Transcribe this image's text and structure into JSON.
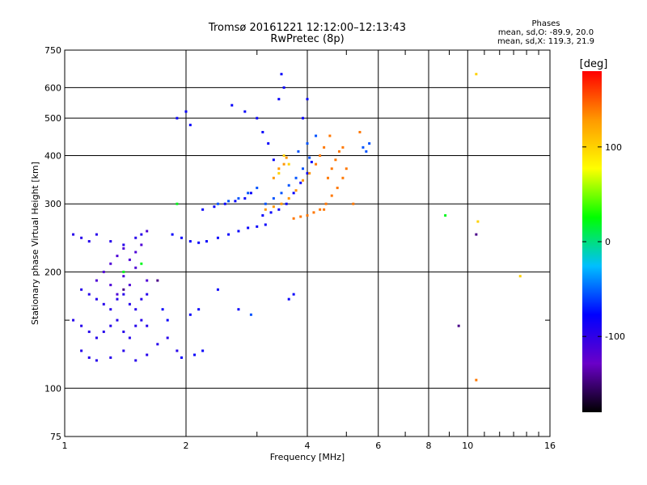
{
  "chart_data": {
    "type": "scatter",
    "title": "Tromsø 20161221 12:12:00–12:13:43",
    "subtitle": "RwPretec (8p)",
    "stats": {
      "heading": "Phases",
      "line_O": "mean, sd,O: -89.9, 20.0",
      "line_X": "mean, sd,X: 119.3, 21.9"
    },
    "xlabel": "Frequency [MHz]",
    "ylabel": "Stationary phase Virtual Height [km]",
    "x_scale": "log",
    "y_scale": "log",
    "xlim": [
      1,
      16
    ],
    "ylim": [
      75,
      750
    ],
    "x_ticks": [
      1,
      2,
      4,
      6,
      8,
      10,
      16
    ],
    "x_minor_ticks": [
      3,
      5,
      7,
      9,
      11,
      12,
      13,
      14,
      15
    ],
    "y_ticks": [
      75,
      100,
      200,
      300,
      400,
      500,
      600,
      750
    ],
    "y_minor_ticks": [
      150
    ],
    "grid": true,
    "colorbar": {
      "label": "[deg]",
      "range": [
        -180,
        180
      ],
      "ticks": [
        100,
        0,
        -100
      ],
      "colors": [
        "#000000",
        "#6a00c8",
        "#0000ff",
        "#00bfff",
        "#00ff00",
        "#ffff00",
        "#ff9900",
        "#ff0000"
      ]
    },
    "series": [
      {
        "phase_deg": -95,
        "points": [
          [
            1.05,
            250
          ],
          [
            1.1,
            245
          ],
          [
            1.15,
            240
          ],
          [
            1.2,
            250
          ],
          [
            1.3,
            240
          ],
          [
            1.4,
            235
          ],
          [
            1.5,
            245
          ],
          [
            1.55,
            250
          ],
          [
            1.1,
            180
          ],
          [
            1.15,
            175
          ],
          [
            1.2,
            170
          ],
          [
            1.25,
            165
          ],
          [
            1.3,
            160
          ],
          [
            1.35,
            170
          ],
          [
            1.4,
            175
          ],
          [
            1.45,
            165
          ],
          [
            1.5,
            160
          ],
          [
            1.55,
            170
          ],
          [
            1.6,
            175
          ],
          [
            1.05,
            150
          ],
          [
            1.1,
            145
          ],
          [
            1.15,
            140
          ],
          [
            1.2,
            135
          ],
          [
            1.25,
            140
          ],
          [
            1.3,
            145
          ],
          [
            1.35,
            150
          ],
          [
            1.4,
            140
          ],
          [
            1.45,
            135
          ],
          [
            1.5,
            145
          ],
          [
            1.55,
            150
          ],
          [
            1.6,
            145
          ],
          [
            1.1,
            125
          ],
          [
            1.15,
            120
          ],
          [
            1.2,
            118
          ],
          [
            1.3,
            120
          ],
          [
            1.4,
            125
          ],
          [
            1.5,
            118
          ],
          [
            1.6,
            122
          ],
          [
            1.7,
            130
          ],
          [
            1.8,
            135
          ],
          [
            1.9,
            125
          ]
        ]
      },
      {
        "phase_deg": -115,
        "points": [
          [
            1.2,
            190
          ],
          [
            1.25,
            200
          ],
          [
            1.3,
            210
          ],
          [
            1.35,
            220
          ],
          [
            1.4,
            230
          ],
          [
            1.45,
            215
          ],
          [
            1.5,
            205
          ],
          [
            1.3,
            185
          ],
          [
            1.35,
            175
          ],
          [
            1.4,
            195
          ],
          [
            1.45,
            185
          ],
          [
            1.5,
            225
          ],
          [
            1.55,
            235
          ],
          [
            1.6,
            255
          ],
          [
            1.6,
            190
          ]
        ]
      },
      {
        "phase_deg": -80,
        "points": [
          [
            1.85,
            250
          ],
          [
            1.95,
            245
          ],
          [
            2.05,
            240
          ],
          [
            2.15,
            238
          ],
          [
            2.25,
            240
          ],
          [
            2.4,
            245
          ],
          [
            2.55,
            250
          ],
          [
            2.7,
            255
          ],
          [
            2.85,
            260
          ],
          [
            3.0,
            262
          ],
          [
            3.15,
            265
          ],
          [
            2.2,
            290
          ],
          [
            2.35,
            295
          ],
          [
            2.5,
            300
          ],
          [
            2.65,
            305
          ],
          [
            2.8,
            310
          ],
          [
            2.9,
            320
          ],
          [
            3.1,
            280
          ],
          [
            3.25,
            285
          ],
          [
            3.4,
            290
          ],
          [
            3.55,
            300
          ],
          [
            3.7,
            320
          ],
          [
            3.85,
            340
          ],
          [
            4.0,
            360
          ],
          [
            4.1,
            385
          ],
          [
            1.9,
            500
          ],
          [
            2.0,
            520
          ],
          [
            2.05,
            480
          ],
          [
            2.6,
            540
          ],
          [
            2.8,
            520
          ],
          [
            3.0,
            500
          ],
          [
            3.1,
            460
          ],
          [
            3.2,
            430
          ],
          [
            3.3,
            390
          ],
          [
            3.5,
            600
          ],
          [
            3.45,
            650
          ],
          [
            3.4,
            560
          ],
          [
            4.0,
            560
          ],
          [
            3.9,
            500
          ],
          [
            1.75,
            160
          ],
          [
            1.8,
            150
          ],
          [
            2.05,
            155
          ],
          [
            2.15,
            160
          ],
          [
            2.2,
            125
          ],
          [
            2.1,
            122
          ],
          [
            1.95,
            120
          ],
          [
            2.4,
            180
          ],
          [
            2.7,
            160
          ],
          [
            3.6,
            170
          ],
          [
            3.7,
            175
          ]
        ]
      },
      {
        "phase_deg": -55,
        "points": [
          [
            2.4,
            300
          ],
          [
            2.55,
            305
          ],
          [
            2.7,
            310
          ],
          [
            2.85,
            320
          ],
          [
            3.0,
            330
          ],
          [
            3.15,
            300
          ],
          [
            3.3,
            310
          ],
          [
            3.45,
            320
          ],
          [
            3.6,
            335
          ],
          [
            3.75,
            350
          ],
          [
            3.9,
            370
          ],
          [
            4.05,
            395
          ],
          [
            3.8,
            410
          ],
          [
            4.0,
            430
          ],
          [
            4.2,
            450
          ],
          [
            5.6,
            410
          ],
          [
            5.7,
            430
          ],
          [
            5.5,
            420
          ],
          [
            2.9,
            155
          ]
        ]
      },
      {
        "phase_deg": 130,
        "points": [
          [
            3.15,
            290
          ],
          [
            3.3,
            295
          ],
          [
            3.45,
            300
          ],
          [
            3.6,
            310
          ],
          [
            3.75,
            325
          ],
          [
            3.9,
            345
          ],
          [
            4.05,
            360
          ],
          [
            3.3,
            350
          ],
          [
            3.4,
            370
          ],
          [
            3.5,
            380
          ],
          [
            3.55,
            395
          ]
        ]
      },
      {
        "phase_deg": 140,
        "points": [
          [
            3.7,
            275
          ],
          [
            3.85,
            278
          ],
          [
            4.0,
            280
          ],
          [
            4.15,
            285
          ],
          [
            4.3,
            290
          ],
          [
            4.45,
            300
          ],
          [
            4.6,
            315
          ],
          [
            4.75,
            330
          ],
          [
            4.9,
            350
          ],
          [
            5.0,
            370
          ],
          [
            4.5,
            350
          ],
          [
            4.6,
            370
          ],
          [
            4.7,
            390
          ],
          [
            4.8,
            410
          ],
          [
            4.9,
            420
          ],
          [
            4.2,
            380
          ],
          [
            4.3,
            400
          ],
          [
            4.4,
            420
          ],
          [
            5.2,
            300
          ],
          [
            4.4,
            290
          ],
          [
            4.55,
            450
          ],
          [
            5.4,
            460
          ],
          [
            10.5,
            105
          ]
        ]
      },
      {
        "phase_deg": 100,
        "points": [
          [
            3.6,
            380
          ],
          [
            3.5,
            400
          ],
          [
            3.4,
            360
          ],
          [
            13.5,
            195
          ],
          [
            10.6,
            270
          ],
          [
            10.5,
            650
          ]
        ]
      },
      {
        "phase_deg": 20,
        "points": [
          [
            1.4,
            200
          ],
          [
            1.55,
            210
          ],
          [
            1.9,
            300
          ],
          [
            8.8,
            280
          ]
        ]
      },
      {
        "phase_deg": -145,
        "points": [
          [
            1.4,
            180
          ],
          [
            9.5,
            145
          ],
          [
            10.5,
            250
          ],
          [
            1.7,
            190
          ]
        ]
      }
    ]
  }
}
